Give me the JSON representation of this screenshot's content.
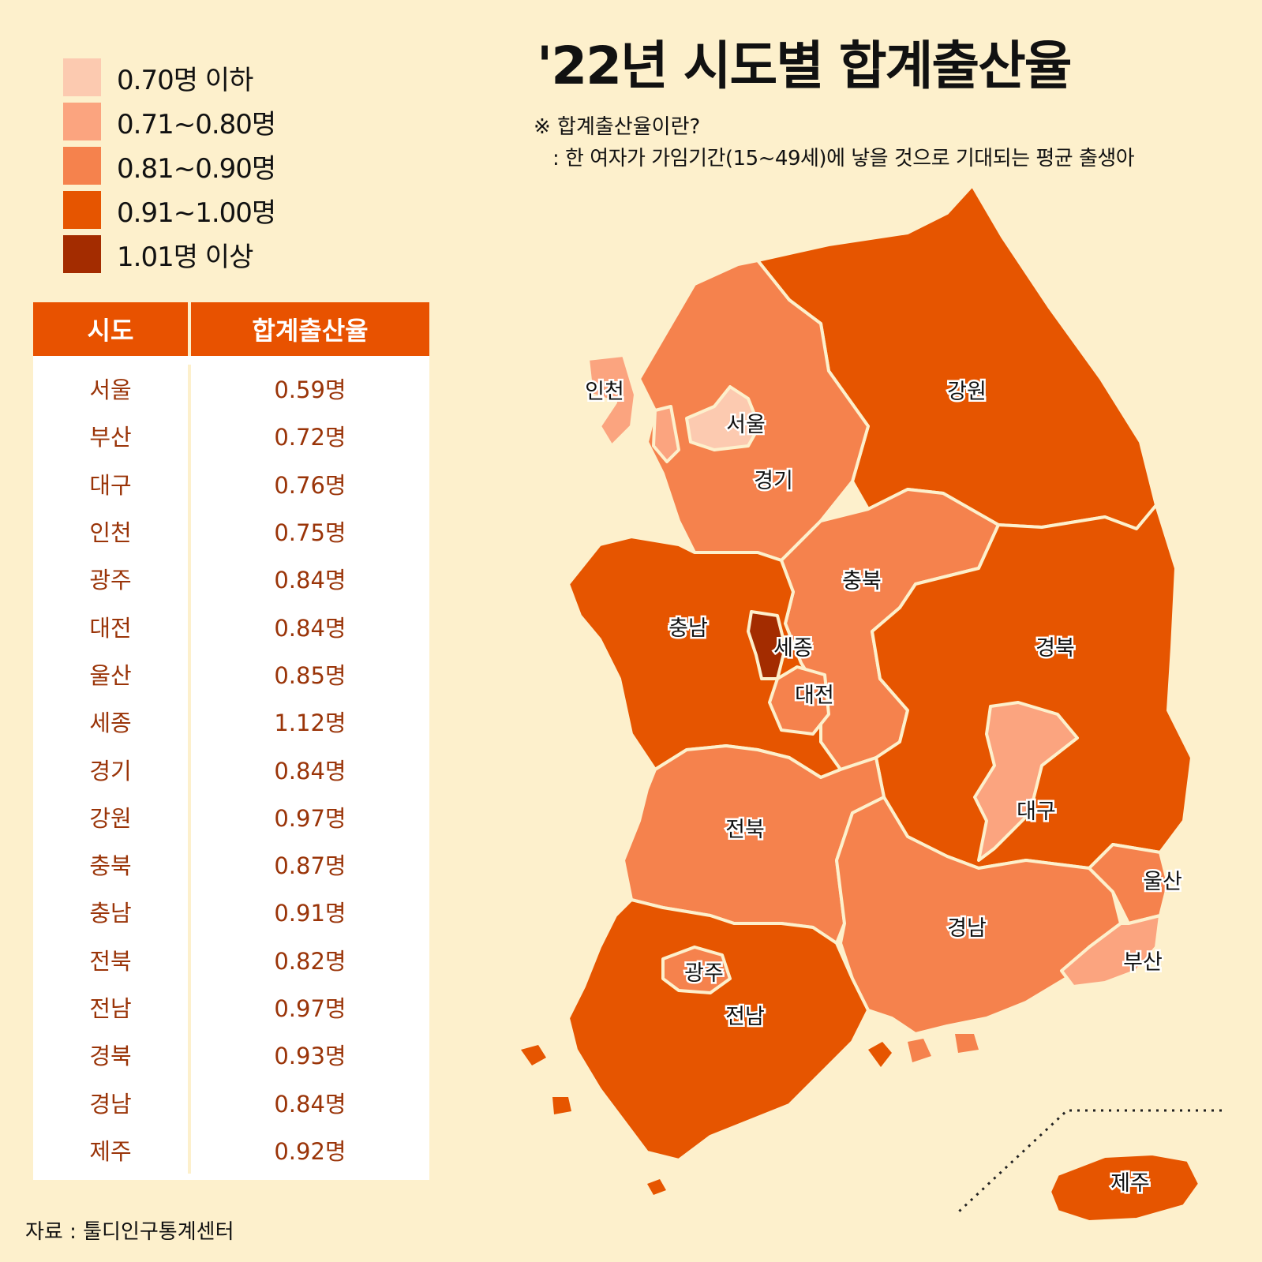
{
  "title": "'22년 시도별 합계출산율",
  "note": {
    "line1": "※ 합계출산율이란?",
    "line2": ": 한 여자가 가임기간(15~49세)에 낳을 것으로 기대되는 평균 출생아"
  },
  "source": "자료 : 툴디인구통계센터",
  "legend": [
    {
      "label": "0.70명 이하",
      "color": "#fccab0"
    },
    {
      "label": "0.71~0.80명",
      "color": "#fba47f"
    },
    {
      "label": "0.81~0.90명",
      "color": "#f5824d"
    },
    {
      "label": "0.91~1.00명",
      "color": "#e65500"
    },
    {
      "label": "1.01명 이상",
      "color": "#a32c00"
    }
  ],
  "table": {
    "headers": [
      "시도",
      "합계출산율"
    ],
    "rows": [
      [
        "서울",
        "0.59명"
      ],
      [
        "부산",
        "0.72명"
      ],
      [
        "대구",
        "0.76명"
      ],
      [
        "인천",
        "0.75명"
      ],
      [
        "광주",
        "0.84명"
      ],
      [
        "대전",
        "0.84명"
      ],
      [
        "울산",
        "0.85명"
      ],
      [
        "세종",
        "1.12명"
      ],
      [
        "경기",
        "0.84명"
      ],
      [
        "강원",
        "0.97명"
      ],
      [
        "충북",
        "0.87명"
      ],
      [
        "충남",
        "0.91명"
      ],
      [
        "전북",
        "0.82명"
      ],
      [
        "전남",
        "0.97명"
      ],
      [
        "경북",
        "0.93명"
      ],
      [
        "경남",
        "0.84명"
      ],
      [
        "제주",
        "0.92명"
      ]
    ]
  },
  "map_labels": {
    "incheon": "인천",
    "seoul": "서울",
    "gyeonggi": "경기",
    "gangwon": "강원",
    "chungbuk": "충북",
    "chungnam": "충남",
    "sejong": "세종",
    "daejeon": "대전",
    "gyeongbuk": "경북",
    "daegu": "대구",
    "jeonbuk": "전북",
    "ulsan": "울산",
    "gyeongnam": "경남",
    "busan": "부산",
    "gwangju": "광주",
    "jeonnam": "전남",
    "jeju": "제주"
  },
  "colors": {
    "background": "#fdf0cc",
    "header": "#e85200",
    "table_text": "#9a3408"
  }
}
